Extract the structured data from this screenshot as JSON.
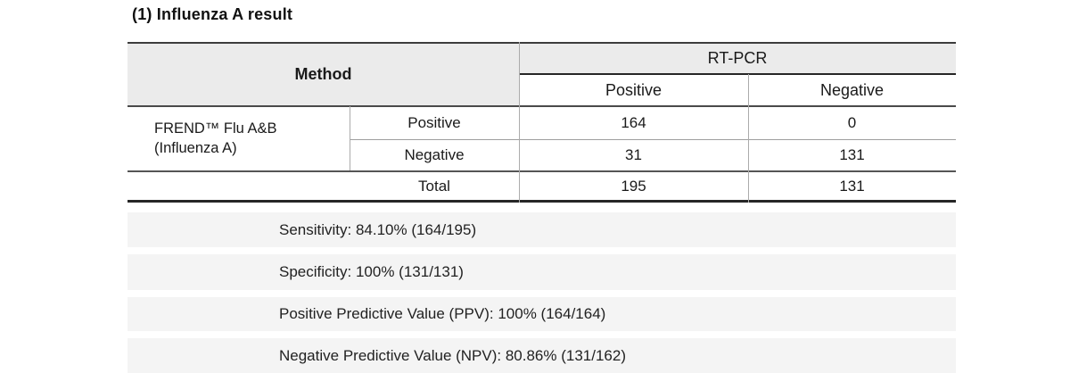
{
  "title": "(1) Influenza A result",
  "table": {
    "method_header": "Method",
    "rtpcr_header": "RT-PCR",
    "subheaders": {
      "positive": "Positive",
      "negative": "Negative"
    },
    "device": {
      "line1": "FREND™ Flu A&B",
      "line2": "(Influenza A)"
    },
    "rows": [
      {
        "label": "Positive",
        "rtpcr_positive": "164",
        "rtpcr_negative": "0"
      },
      {
        "label": "Negative",
        "rtpcr_positive": "31",
        "rtpcr_negative": "131"
      }
    ],
    "total": {
      "label": "Total",
      "rtpcr_positive": "195",
      "rtpcr_negative": "131"
    }
  },
  "stats": [
    {
      "label": "Sensitivity: 84.10% (164/195)"
    },
    {
      "label": "Specificity: 100% (131/131)"
    },
    {
      "label": "Positive Predictive Value (PPV): 100% (164/164)"
    },
    {
      "label": "Negative Predictive Value (NPV): 80.86% (131/162)"
    }
  ],
  "colors": {
    "header_bg": "#ebebeb",
    "stat_bar_bg": "#f4f4f4",
    "border_dark": "#262626",
    "border_light": "#ababab",
    "text": "#1a1a1a"
  }
}
